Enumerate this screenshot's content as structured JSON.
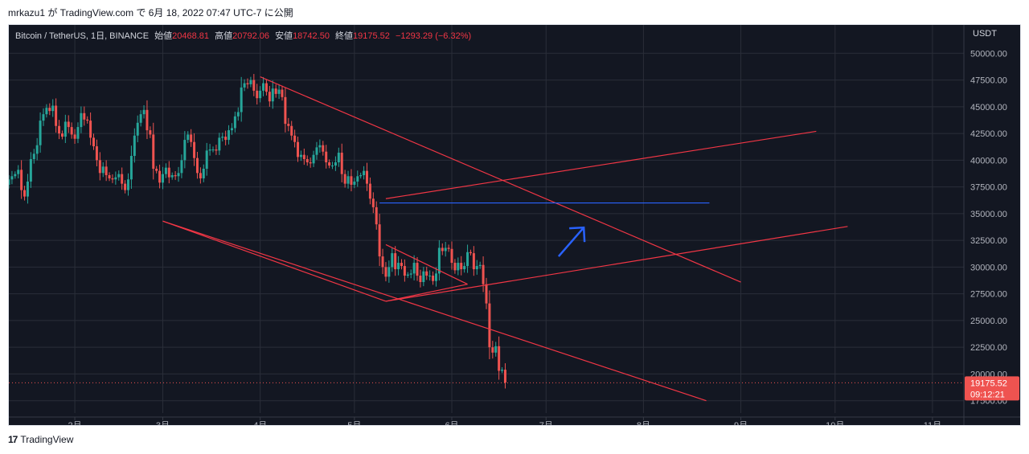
{
  "header": {
    "caption": "mrkazu1 が TradingView.com で 6月 18, 2022 07:47 UTC-7 に公開"
  },
  "legend": {
    "symbol": "Bitcoin / TetherUS, 1日, BINANCE",
    "open_label": "始値",
    "open": "20468.81",
    "high_label": "高値",
    "high": "20792.06",
    "low_label": "安値",
    "low": "18742.50",
    "close_label": "終値",
    "close": "19175.52",
    "change": "−1293.29 (−6.32%)"
  },
  "footer": {
    "brand": "TradingView",
    "logo": "17"
  },
  "chart_data": {
    "type": "candlestick",
    "unit_label": "USDT",
    "y_ticks": [
      "17500.00",
      "20000.00",
      "22500.00",
      "25000.00",
      "27500.00",
      "30000.00",
      "32500.00",
      "35000.00",
      "37500.00",
      "40000.00",
      "42500.00",
      "45000.00",
      "47500.00",
      "50000.00"
    ],
    "y_tick_values": [
      17500,
      20000,
      22500,
      25000,
      27500,
      30000,
      32500,
      35000,
      37500,
      40000,
      42500,
      45000,
      47500,
      50000
    ],
    "x_ticks": [
      "2月",
      "3月",
      "4月",
      "5月",
      "6月",
      "7月",
      "8月",
      "9月",
      "10月",
      "11月"
    ],
    "x_tick_days": [
      31,
      59,
      90,
      120,
      151,
      181,
      212,
      243,
      273,
      304
    ],
    "x_range_days": [
      10,
      314
    ],
    "y_range": [
      16500,
      51000
    ],
    "last_price": {
      "price": 19175.52,
      "label": "19175.52",
      "countdown": "09:12:21"
    },
    "closes": [
      43500,
      43200,
      42800,
      42100,
      43000,
      41900,
      41400,
      36300,
      35000,
      36200,
      36900,
      37100,
      37700,
      38200,
      38500,
      38700,
      39100,
      37200,
      36600,
      38000,
      40100,
      40600,
      41400,
      43700,
      44300,
      44900,
      44600,
      45100,
      43200,
      42500,
      42200,
      43600,
      43100,
      42400,
      42000,
      43100,
      44400,
      43800,
      43700,
      42100,
      41300,
      40000,
      38800,
      39400,
      38600,
      38300,
      38200,
      38400,
      38700,
      37800,
      37200,
      38200,
      40400,
      42300,
      43500,
      44300,
      44700,
      42800,
      42400,
      39200,
      39000,
      37900,
      38700,
      39300,
      38400,
      38600,
      38500,
      38800,
      40000,
      41900,
      42400,
      41700,
      40200,
      38800,
      38300,
      39200,
      40900,
      41000,
      41000,
      40900,
      42100,
      42200,
      41900,
      42800,
      43000,
      44100,
      44500,
      46800,
      47200,
      47100,
      47500,
      46500,
      45800,
      46500,
      47200,
      46400,
      45500,
      46700,
      46200,
      46600,
      45900,
      43400,
      43200,
      42300,
      41700,
      40300,
      40500,
      40100,
      39800,
      39700,
      40500,
      41200,
      41400,
      40800,
      39800,
      39500,
      39500,
      39800,
      40700,
      38700,
      37800,
      38500,
      37700,
      38000,
      38500,
      38600,
      39000,
      37800,
      36400,
      35600,
      34000,
      31000,
      30000,
      29100,
      30000,
      31300,
      29800,
      30400,
      30100,
      29200,
      29300,
      29400,
      30400,
      29200,
      28600,
      29600,
      29200,
      29200,
      28700,
      29400,
      31800,
      31500,
      31800,
      31700,
      30400,
      29700,
      30400,
      29800,
      30100,
      31400,
      31300,
      29800,
      30100,
      30200,
      28400,
      26600,
      22500,
      22000,
      22600,
      20300,
      20400,
      19200
    ],
    "trendlines": [
      {
        "name": "descending-upper",
        "color": "#f23645",
        "x": [
          90,
          243
        ],
        "y": [
          47800,
          28600
        ]
      },
      {
        "name": "descending-lower",
        "color": "#f23645",
        "x": [
          59,
          232
        ],
        "y": [
          34300,
          17500
        ]
      },
      {
        "name": "ascending-wedge-upper",
        "color": "#f23645",
        "x": [
          130,
          267
        ],
        "y": [
          36400,
          42700
        ]
      },
      {
        "name": "ascending-wedge-lower",
        "color": "#f23645",
        "x": [
          59,
          130
        ],
        "y": [
          34300,
          26800
        ]
      },
      {
        "name": "pennant-top",
        "color": "#f23645",
        "x": [
          130,
          156
        ],
        "y": [
          32100,
          28400
        ]
      },
      {
        "name": "pennant-bottom",
        "color": "#f23645",
        "x": [
          130,
          156
        ],
        "y": [
          26800,
          28400
        ]
      },
      {
        "name": "ascending-lower-extension",
        "color": "#f23645",
        "x": [
          130,
          277
        ],
        "y": [
          26800,
          33800
        ]
      },
      {
        "name": "horizontal-target",
        "color": "#2962ff",
        "x": [
          128,
          233
        ],
        "y": [
          36000,
          36000
        ]
      }
    ],
    "arrow": {
      "color": "#2962ff",
      "x": [
        185,
        193
      ],
      "y": [
        31000,
        33700
      ]
    }
  }
}
